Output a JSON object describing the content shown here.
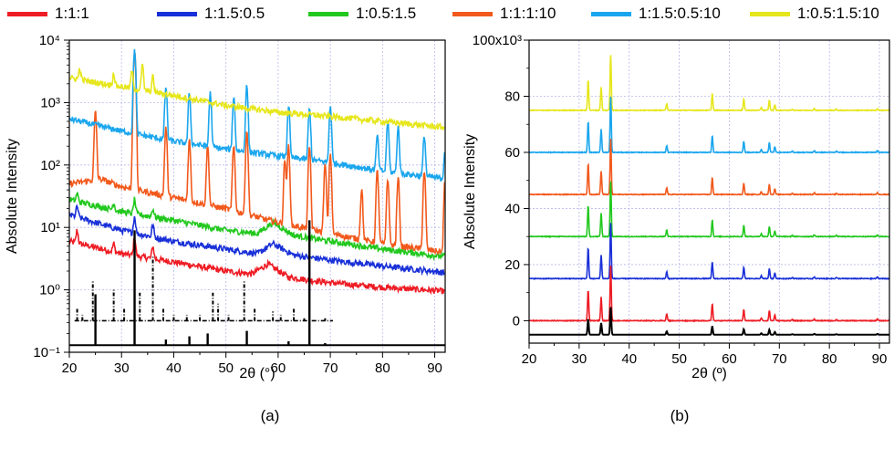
{
  "legend": [
    {
      "label": "1:1:1",
      "color": "#ee1c24"
    },
    {
      "label": "1:1.5:0.5",
      "color": "#1930d8"
    },
    {
      "label": "1:0.5:1.5",
      "color": "#22c81e"
    },
    {
      "label": "1:1:1:10",
      "color": "#f2591c"
    },
    {
      "label": "1:1.5:0.5:10",
      "color": "#1aa6ee"
    },
    {
      "label": "1:0.5:1.5:10",
      "color": "#e6e61c"
    }
  ],
  "chart_data": [
    {
      "type": "line",
      "panel_label": "(a)",
      "xlabel": "2θ  (°)",
      "ylabel": "Absolute Intensity",
      "xlim": [
        20,
        92
      ],
      "ylim": [
        0.1,
        10000
      ],
      "yscale": "log",
      "xticks": [
        "20",
        "30",
        "40",
        "50",
        "60",
        "70",
        "80",
        "90"
      ],
      "yticks": [
        "10⁻¹",
        "10⁰",
        "10¹",
        "10²",
        "10³",
        "10⁴"
      ],
      "grid": true,
      "series": [
        {
          "name": "1:1:1",
          "color": "#ee1c24",
          "background": [
            [
              20,
              6
            ],
            [
              30,
              3.8
            ],
            [
              40,
              2.8
            ],
            [
              50,
              2.0
            ],
            [
              55,
              1.8
            ],
            [
              58,
              2.6
            ],
            [
              62,
              1.6
            ],
            [
              70,
              1.3
            ],
            [
              80,
              1.1
            ],
            [
              92,
              0.95
            ]
          ],
          "peaks": [
            [
              21.5,
              9
            ],
            [
              28.5,
              5.5
            ],
            [
              32.5,
              7
            ],
            [
              36,
              5
            ]
          ]
        },
        {
          "name": "1:1.5:0.5",
          "color": "#1930d8",
          "background": [
            [
              20,
              16
            ],
            [
              30,
              9
            ],
            [
              40,
              6
            ],
            [
              50,
              4.5
            ],
            [
              56,
              3.8
            ],
            [
              59,
              5.5
            ],
            [
              63,
              3.6
            ],
            [
              70,
              3
            ],
            [
              80,
              2.4
            ],
            [
              92,
              1.9
            ]
          ],
          "peaks": [
            [
              21.5,
              22
            ],
            [
              32.5,
              15
            ],
            [
              36,
              11
            ]
          ]
        },
        {
          "name": "1:0.5:1.5",
          "color": "#22c81e",
          "background": [
            [
              20,
              28
            ],
            [
              30,
              18
            ],
            [
              40,
              13
            ],
            [
              50,
              9
            ],
            [
              56,
              8
            ],
            [
              59,
              12
            ],
            [
              63,
              7.5
            ],
            [
              70,
              6
            ],
            [
              80,
              4.5
            ],
            [
              92,
              3.4
            ]
          ],
          "peaks": [
            [
              21.5,
              35
            ],
            [
              28.5,
              25
            ],
            [
              32.5,
              28
            ],
            [
              36,
              20
            ]
          ]
        },
        {
          "name": "1:1:1:10",
          "color": "#f2591c",
          "background": [
            [
              20,
              50
            ],
            [
              26,
              60
            ],
            [
              30,
              45
            ],
            [
              40,
              30
            ],
            [
              50,
              20
            ],
            [
              60,
              12
            ],
            [
              70,
              8
            ],
            [
              80,
              5.5
            ],
            [
              92,
              4
            ]
          ],
          "peaks": [
            [
              25,
              700
            ],
            [
              32.5,
              6500
            ],
            [
              38.5,
              400
            ],
            [
              43,
              250
            ],
            [
              46.5,
              200
            ],
            [
              51.5,
              200
            ],
            [
              54,
              350
            ],
            [
              61.3,
              120
            ],
            [
              62,
              200
            ],
            [
              66,
              180
            ],
            [
              69,
              100
            ],
            [
              70,
              150
            ],
            [
              76,
              40
            ],
            [
              79,
              80
            ],
            [
              81,
              60
            ],
            [
              83,
              60
            ],
            [
              88,
              80
            ],
            [
              92,
              60
            ]
          ]
        },
        {
          "name": "1:1.5:0.5:10",
          "color": "#1aa6ee",
          "background": [
            [
              20,
              550
            ],
            [
              30,
              350
            ],
            [
              40,
              240
            ],
            [
              50,
              180
            ],
            [
              60,
              140
            ],
            [
              70,
              110
            ],
            [
              80,
              80
            ],
            [
              92,
              60
            ]
          ],
          "peaks": [
            [
              32.5,
              7000
            ],
            [
              38.5,
              1800
            ],
            [
              43,
              1400
            ],
            [
              47,
              1400
            ],
            [
              51.5,
              1200
            ],
            [
              54,
              1800
            ],
            [
              62,
              900
            ],
            [
              66,
              800
            ],
            [
              70,
              900
            ],
            [
              79,
              300
            ],
            [
              81,
              500
            ],
            [
              83,
              400
            ],
            [
              88,
              300
            ],
            [
              92,
              200
            ]
          ]
        },
        {
          "name": "1:0.5:1.5:10",
          "color": "#e6e61c",
          "background": [
            [
              20,
              2500
            ],
            [
              30,
              1800
            ],
            [
              40,
              1300
            ],
            [
              50,
              900
            ],
            [
              60,
              700
            ],
            [
              70,
              600
            ],
            [
              80,
              500
            ],
            [
              92,
              400
            ]
          ],
          "peaks": [
            [
              22,
              3500
            ],
            [
              28.5,
              3000
            ],
            [
              32,
              3200
            ],
            [
              34,
              4000
            ],
            [
              36,
              2600
            ]
          ]
        }
      ],
      "reference_sticks_solid": [
        [
          25,
          0.85
        ],
        [
          32.5,
          9
        ],
        [
          38.5,
          0.16
        ],
        [
          43,
          0.18
        ],
        [
          46.5,
          0.2
        ],
        [
          54,
          0.22
        ],
        [
          62,
          0.15
        ],
        [
          66,
          13
        ],
        [
          69,
          0.14
        ],
        [
          76,
          0.13
        ],
        [
          81,
          0.13
        ],
        [
          88,
          0.13
        ]
      ],
      "reference_sticks_dashed": [
        [
          21.5,
          0.5
        ],
        [
          22.5,
          0.4
        ],
        [
          24.5,
          1.4
        ],
        [
          28.5,
          1.0
        ],
        [
          30.5,
          0.5
        ],
        [
          32.5,
          2.0
        ],
        [
          33.5,
          0.9
        ],
        [
          36,
          3.5
        ],
        [
          38,
          0.5
        ],
        [
          40,
          0.4
        ],
        [
          42.5,
          0.4
        ],
        [
          45,
          0.4
        ],
        [
          47.5,
          0.9
        ],
        [
          48.5,
          0.6
        ],
        [
          50.5,
          0.4
        ],
        [
          53.5,
          1.4
        ],
        [
          55.5,
          0.5
        ],
        [
          59,
          0.45
        ],
        [
          60.5,
          0.4
        ],
        [
          63,
          0.5
        ],
        [
          65,
          0.35
        ],
        [
          69,
          0.35
        ]
      ]
    },
    {
      "type": "line",
      "panel_label": "(b)",
      "xlabel": "2θ (º)",
      "ylabel": "Absolute Intensity",
      "xlim": [
        20,
        92
      ],
      "ylim": [
        -8000,
        100000
      ],
      "yscale": "linear",
      "y_top_label": "100x10³",
      "xticks": [
        "20",
        "30",
        "40",
        "50",
        "60",
        "70",
        "80",
        "90"
      ],
      "yticks": [
        [
          "0",
          0
        ],
        [
          "20",
          20000
        ],
        [
          "40",
          40000
        ],
        [
          "60",
          60000
        ],
        [
          "80",
          80000
        ]
      ],
      "grid": true,
      "peak_template": [
        [
          31.8,
          0.55
        ],
        [
          34.4,
          0.42
        ],
        [
          36.3,
          1.0
        ],
        [
          47.5,
          0.12
        ],
        [
          56.6,
          0.3
        ],
        [
          62.9,
          0.2
        ],
        [
          66.4,
          0.05
        ],
        [
          68.0,
          0.18
        ],
        [
          69.1,
          0.1
        ],
        [
          72.6,
          0.02
        ],
        [
          77.0,
          0.03
        ],
        [
          81.4,
          0.02
        ],
        [
          89.6,
          0.03
        ]
      ],
      "series": [
        {
          "name": "1:0.5:1.5:10",
          "color": "#e6e61c",
          "baseline": 75000,
          "peak_scale": 20000
        },
        {
          "name": "1:1.5:0.5:10",
          "color": "#1aa6ee",
          "baseline": 60000,
          "peak_scale": 20000
        },
        {
          "name": "1:1:1:10",
          "color": "#f2591c",
          "baseline": 45000,
          "peak_scale": 20000
        },
        {
          "name": "1:0.5:1.5",
          "color": "#22c81e",
          "baseline": 30000,
          "peak_scale": 20000
        },
        {
          "name": "1:1.5:0.5",
          "color": "#1930d8",
          "baseline": 15000,
          "peak_scale": 20000
        },
        {
          "name": "1:1:1",
          "color": "#ee1c24",
          "baseline": 0,
          "peak_scale": 20000
        },
        {
          "name": "",
          "color": "#000000",
          "baseline": -5000,
          "peak_scale": 10000
        }
      ]
    }
  ]
}
